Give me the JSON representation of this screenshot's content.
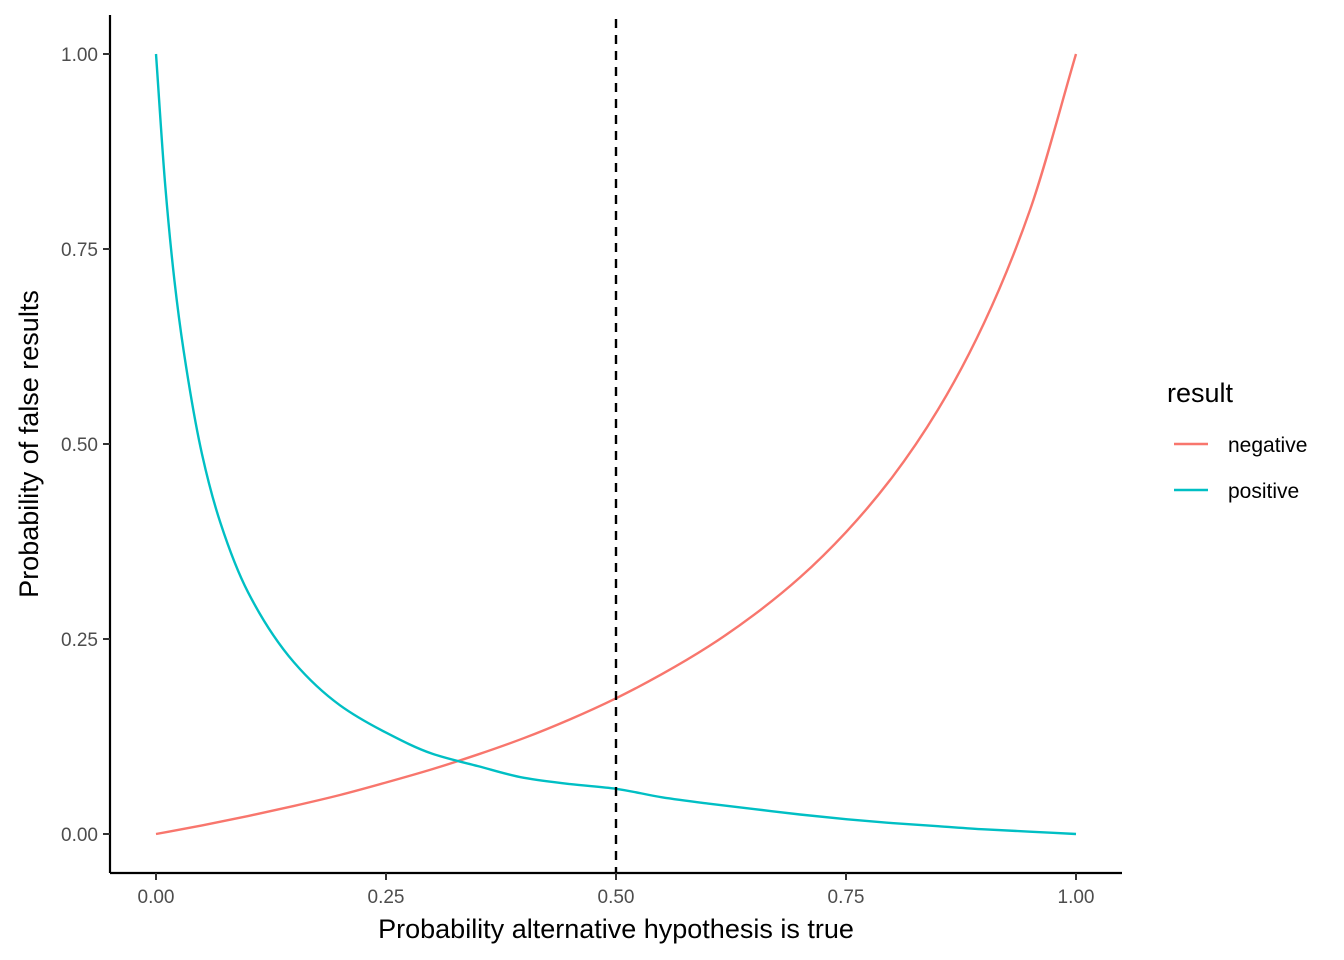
{
  "chart_data": {
    "type": "line",
    "title": "",
    "xlabel": "Probability alternative hypothesis is true",
    "ylabel": "Probability of false results",
    "xlim": [
      -0.05,
      1.05
    ],
    "ylim": [
      -0.05,
      1.05
    ],
    "x_ticks": [
      0,
      0.25,
      0.5,
      0.75,
      1
    ],
    "x_tick_labels": [
      "0.00",
      "0.25",
      "0.50",
      "0.75",
      "1.00"
    ],
    "y_ticks": [
      0,
      0.25,
      0.5,
      0.75,
      1
    ],
    "y_tick_labels": [
      "0.00",
      "0.25",
      "0.50",
      "0.75",
      "1.00"
    ],
    "grid": false,
    "legend": {
      "title": "result",
      "position": "right"
    },
    "series": [
      {
        "name": "negative",
        "color": "#F8766D",
        "x": [
          0,
          0.05,
          0.1,
          0.15,
          0.2,
          0.25,
          0.3,
          0.35,
          0.4,
          0.45,
          0.5,
          0.55,
          0.6,
          0.65,
          0.7,
          0.75,
          0.8,
          0.85,
          0.9,
          0.95,
          1
        ],
        "y": [
          0,
          0.011,
          0.023,
          0.036,
          0.05,
          0.066,
          0.083,
          0.102,
          0.123,
          0.147,
          0.174,
          0.205,
          0.24,
          0.281,
          0.329,
          0.387,
          0.457,
          0.544,
          0.655,
          0.8,
          1
        ]
      },
      {
        "name": "positive",
        "color": "#00BFC4",
        "x": [
          0,
          0.01,
          0.02,
          0.03,
          0.05,
          0.07,
          0.1,
          0.15,
          0.2,
          0.25,
          0.3,
          0.35,
          0.4,
          0.45,
          0.5,
          0.55,
          0.6,
          0.65,
          0.7,
          0.75,
          0.8,
          0.85,
          0.9,
          0.95,
          1
        ],
        "y": [
          1,
          0.832,
          0.71,
          0.62,
          0.487,
          0.399,
          0.31,
          0.22,
          0.165,
          0.13,
          0.103,
          0.087,
          0.072,
          0.064,
          0.058,
          0.047,
          0.039,
          0.032,
          0.025,
          0.019,
          0.014,
          0.01,
          0.006,
          0.003,
          0
        ]
      }
    ],
    "annotations": [
      {
        "type": "vline",
        "x": 0.5,
        "style": "dashed",
        "color": "#000000"
      }
    ]
  }
}
